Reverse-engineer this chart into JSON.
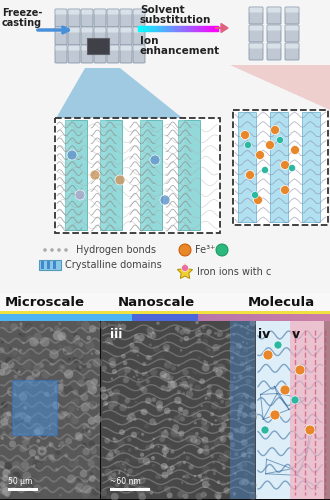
{
  "bg_color": "#f0f0f0",
  "top_bg": "#f2f2f2",
  "freeze_text": "Freeze-\ncasting",
  "solvent_text": "Solvent\nsubstitution",
  "ion_text": "Ion\nenhancement",
  "arrow_blue": "#4a90d9",
  "zoom_blue": "#5b9fd4",
  "crystalline_color": "#7dcece",
  "crystalline_dark": "#4aabab",
  "h_bond_color": "#aaaaaa",
  "dashed_color": "#444444",
  "pink_bg": "#f0a8a0",
  "legend_h_bonds": "Hydrogen bonds",
  "legend_cryst": "Crystalline domains",
  "legend_fe": "Fe³⁺",
  "legend_iron": "Iron ions with c",
  "fe_color": "#e8862a",
  "gem_color": "#2ab87c",
  "star_color": "#f0d030",
  "microscale_label": "Microscale",
  "nanoscale_label": "Nanoscale",
  "molecular_label": "Molecula",
  "gradient_bar_colors": [
    "#f5e050",
    "#4ab8e8",
    "#4472c4",
    "#7c6bbf",
    "#c47ca0"
  ],
  "blue_bar_color": "#3a80d0",
  "scale_50": "50 μm",
  "scale_60": "~60 nm",
  "label_iii": "iii",
  "label_iv": "iv",
  "label_v": "v",
  "sem_gray1": "#606060",
  "sem_gray2": "#505050",
  "panel_iv_bg": "#e8f0f5",
  "panel_v_pink": "#f0a8b8"
}
